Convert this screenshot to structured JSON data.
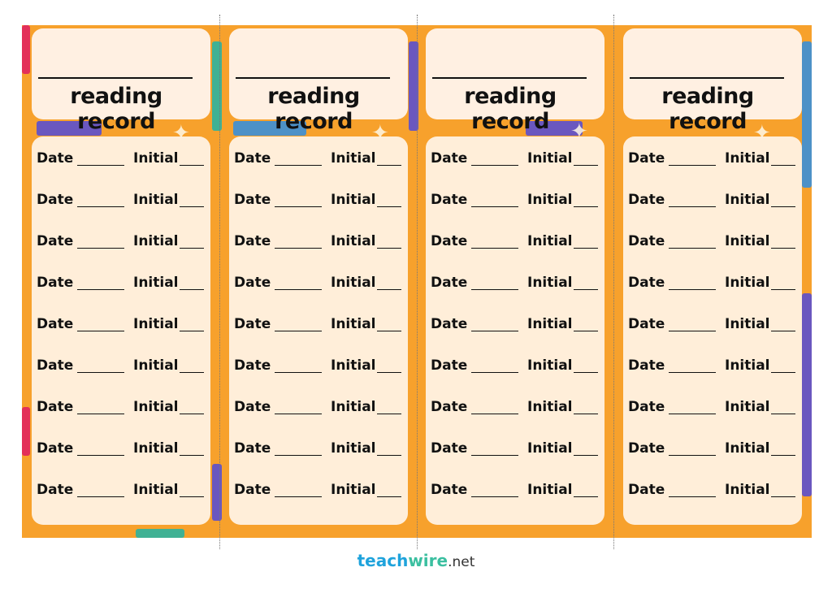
{
  "cards": [
    {
      "title": "reading record",
      "rows": [
        {
          "date_label": "Date",
          "initial_label": "Initial"
        },
        {
          "date_label": "Date",
          "initial_label": "Initial"
        },
        {
          "date_label": "Date",
          "initial_label": "Initial"
        },
        {
          "date_label": "Date",
          "initial_label": "Initial"
        },
        {
          "date_label": "Date",
          "initial_label": "Initial"
        },
        {
          "date_label": "Date",
          "initial_label": "Initial"
        },
        {
          "date_label": "Date",
          "initial_label": "Initial"
        },
        {
          "date_label": "Date",
          "initial_label": "Initial"
        },
        {
          "date_label": "Date",
          "initial_label": "Initial"
        }
      ]
    },
    {
      "title": "reading record",
      "rows": [
        {
          "date_label": "Date",
          "initial_label": "Initial"
        },
        {
          "date_label": "Date",
          "initial_label": "Initial"
        },
        {
          "date_label": "Date",
          "initial_label": "Initial"
        },
        {
          "date_label": "Date",
          "initial_label": "Initial"
        },
        {
          "date_label": "Date",
          "initial_label": "Initial"
        },
        {
          "date_label": "Date",
          "initial_label": "Initial"
        },
        {
          "date_label": "Date",
          "initial_label": "Initial"
        },
        {
          "date_label": "Date",
          "initial_label": "Initial"
        },
        {
          "date_label": "Date",
          "initial_label": "Initial"
        }
      ]
    },
    {
      "title": "reading record",
      "rows": [
        {
          "date_label": "Date",
          "initial_label": "Initial"
        },
        {
          "date_label": "Date",
          "initial_label": "Initial"
        },
        {
          "date_label": "Date",
          "initial_label": "Initial"
        },
        {
          "date_label": "Date",
          "initial_label": "Initial"
        },
        {
          "date_label": "Date",
          "initial_label": "Initial"
        },
        {
          "date_label": "Date",
          "initial_label": "Initial"
        },
        {
          "date_label": "Date",
          "initial_label": "Initial"
        },
        {
          "date_label": "Date",
          "initial_label": "Initial"
        },
        {
          "date_label": "Date",
          "initial_label": "Initial"
        }
      ]
    },
    {
      "title": "reading record",
      "rows": [
        {
          "date_label": "Date",
          "initial_label": "Initial"
        },
        {
          "date_label": "Date",
          "initial_label": "Initial"
        },
        {
          "date_label": "Date",
          "initial_label": "Initial"
        },
        {
          "date_label": "Date",
          "initial_label": "Initial"
        },
        {
          "date_label": "Date",
          "initial_label": "Initial"
        },
        {
          "date_label": "Date",
          "initial_label": "Initial"
        },
        {
          "date_label": "Date",
          "initial_label": "Initial"
        },
        {
          "date_label": "Date",
          "initial_label": "Initial"
        },
        {
          "date_label": "Date",
          "initial_label": "Initial"
        }
      ]
    }
  ],
  "footer": {
    "brand_part1": "teach",
    "brand_part2": "wire",
    "brand_suffix": ".net"
  },
  "colors": {
    "background": "#f7a12c",
    "card": "#fff2e4",
    "brand_blue": "#1fa3dc",
    "brand_green": "#3bbfa0"
  }
}
